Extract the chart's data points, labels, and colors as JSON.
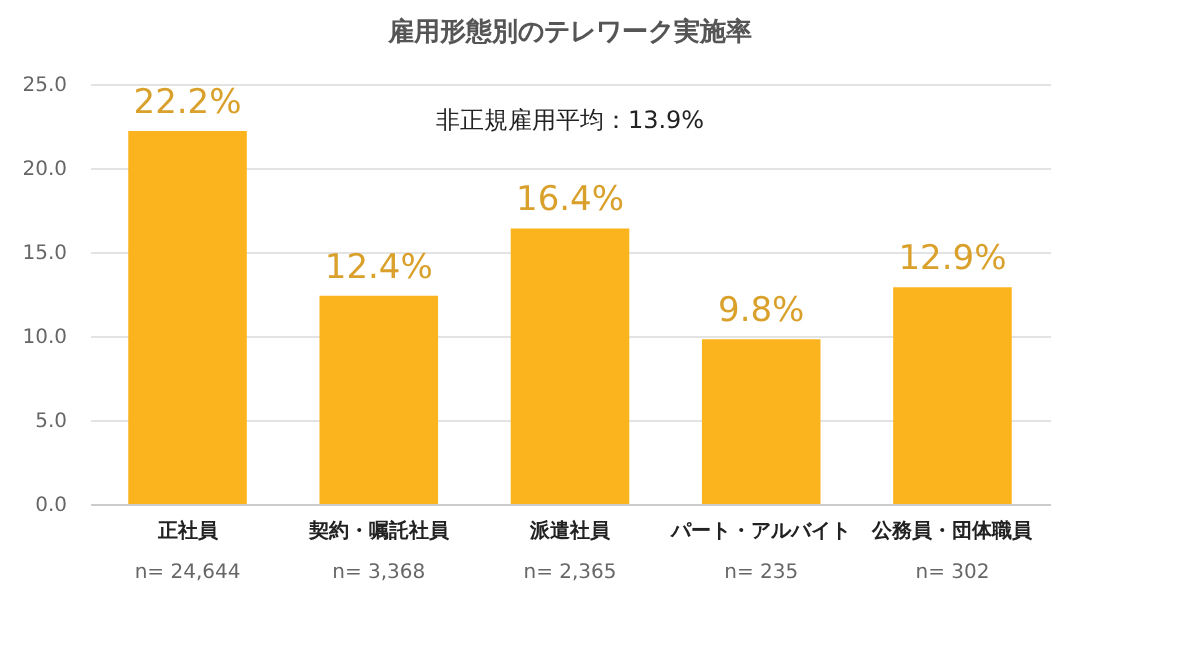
{
  "chart_data": {
    "type": "bar",
    "title": "雇用形態別のテレワーク実施率",
    "categories": [
      "正社員",
      "契約・嘱託社員",
      "派遣社員",
      "パート・アルバイト",
      "公務員・団体職員"
    ],
    "values": [
      22.2,
      12.4,
      16.4,
      9.8,
      12.9
    ],
    "value_labels": [
      "22.2%",
      "12.4%",
      "16.4%",
      "9.8%",
      "12.9%"
    ],
    "color": "#fbb41e",
    "ylim": [
      0,
      25
    ],
    "yticks": [
      {
        "value": 0,
        "label": "0.0"
      },
      {
        "value": 5,
        "label": "5.0"
      },
      {
        "value": 10,
        "label": "10.0"
      },
      {
        "value": 15,
        "label": "15.0"
      },
      {
        "value": 20,
        "label": "20.0"
      },
      {
        "value": 25,
        "label": "25.0"
      }
    ],
    "grid": "y",
    "annotations": [
      "非正規雇用平均：13.9%",
      "n= 24,644",
      "n= 3,368",
      "n= 2,365",
      "n= 235",
      "n= 302"
    ]
  }
}
